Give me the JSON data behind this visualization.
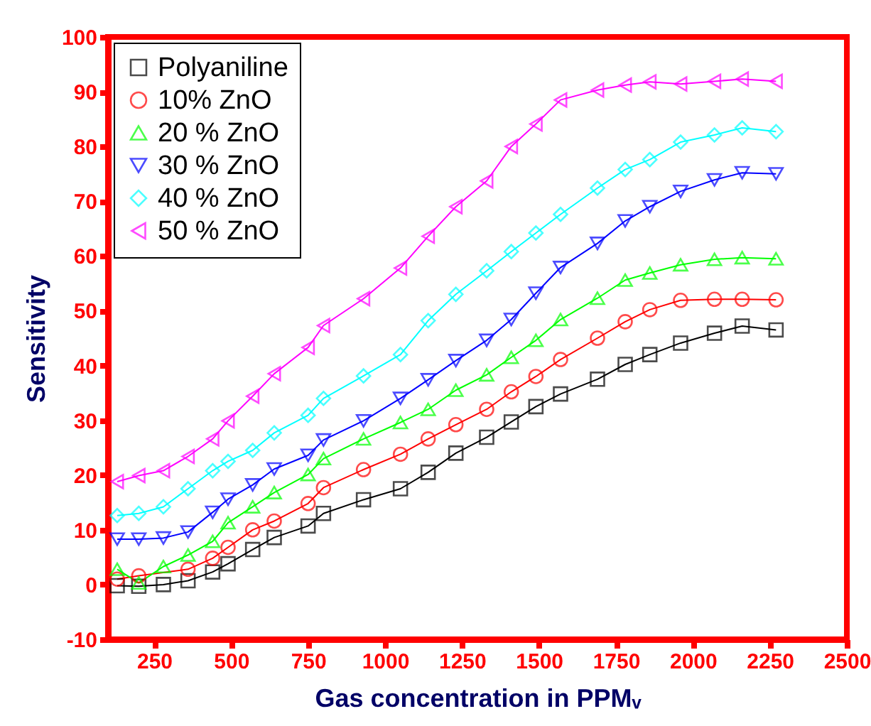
{
  "chart_data": {
    "type": "line",
    "xlabel": "Gas concentration in PPMᵥ",
    "ylabel": "Sensitivity",
    "x": [
      130,
      200,
      280,
      360,
      440,
      490,
      570,
      640,
      750,
      800,
      930,
      1050,
      1140,
      1230,
      1330,
      1410,
      1490,
      1570,
      1690,
      1780,
      1860,
      1960,
      2070,
      2160,
      2270
    ],
    "series": [
      {
        "name": "Polyaniline",
        "color": "#000000",
        "marker": "square",
        "values": [
          -0.2,
          -0.3,
          0,
          0.7,
          2.3,
          3.8,
          6.4,
          8.6,
          10.7,
          13,
          15.5,
          17.5,
          20.5,
          24,
          26.9,
          29.7,
          32.5,
          34.8,
          37.5,
          40.2,
          42,
          44.1,
          45.9,
          47.2,
          46.5
        ]
      },
      {
        "name": "10%  ZnO",
        "color": "#ff0000",
        "marker": "circle",
        "x": [
          130,
          200,
          360,
          440,
          490,
          570,
          640,
          750,
          800,
          930,
          1050,
          1140,
          1230,
          1330,
          1410,
          1490,
          1570,
          1690,
          1780,
          1860,
          1960,
          2070,
          2160,
          2270
        ],
        "values": [
          1,
          1.6,
          2.8,
          4.8,
          6.8,
          10,
          11.6,
          14.8,
          17.7,
          21,
          23.8,
          26.6,
          29.2,
          32,
          35.2,
          38,
          41.1,
          45,
          48,
          50.2,
          51.9,
          52.1,
          52.1,
          52
        ]
      },
      {
        "name": "20 % ZnO",
        "color": "#00ff00",
        "marker": "triangle",
        "values": [
          2.8,
          0.3,
          3.3,
          5.4,
          7.9,
          11.3,
          14.2,
          16.8,
          20.1,
          23,
          26.6,
          29.6,
          32,
          35.5,
          38.3,
          41.5,
          44.6,
          48.4,
          52.3,
          55.6,
          56.9,
          58.4,
          59.4,
          59.7,
          59.5
        ]
      },
      {
        "name": "30 % ZnO",
        "color": "#0000ff",
        "marker": "triangle-down",
        "values": [
          8.3,
          8.3,
          8.5,
          9.6,
          13.2,
          15.6,
          18.2,
          21.1,
          23.6,
          26.4,
          29.9,
          34,
          37.4,
          40.9,
          44.6,
          48.4,
          53.2,
          57.9,
          62.3,
          66.4,
          69,
          71.8,
          73.9,
          75.2,
          75
        ]
      },
      {
        "name": "40 % ZnO",
        "color": "#00ffff",
        "marker": "diamond",
        "values": [
          12.6,
          13,
          14.2,
          17.5,
          20.8,
          22.5,
          24.5,
          27.7,
          30.9,
          34,
          38.1,
          42,
          48.2,
          53,
          57.3,
          60.8,
          64.2,
          67.6,
          72.4,
          75.8,
          77.6,
          80.8,
          82.1,
          83.4,
          82.7
        ]
      },
      {
        "name": "50 % ZnO",
        "color": "#ff00ff",
        "marker": "triangle-left",
        "values": [
          18.8,
          19.9,
          20.8,
          23.4,
          26.6,
          29.9,
          34.4,
          38.5,
          43.3,
          47.3,
          52.2,
          57.8,
          63.6,
          69,
          73.7,
          80,
          84.1,
          88.5,
          90.3,
          91.2,
          91.8,
          91.4,
          91.9,
          92.3,
          91.9
        ]
      }
    ],
    "xlim": [
      100,
      2500
    ],
    "xticks": [
      250,
      500,
      750,
      1000,
      1250,
      1500,
      1750,
      2000,
      2250,
      2500
    ],
    "ylim": [
      -10,
      100
    ],
    "yticks": [
      -10,
      0,
      10,
      20,
      30,
      40,
      50,
      60,
      70,
      80,
      90,
      100
    ],
    "legend": "top left"
  }
}
